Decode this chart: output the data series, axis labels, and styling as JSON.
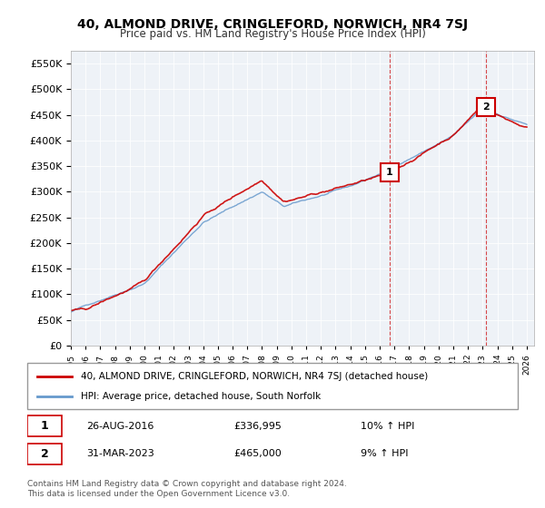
{
  "title": "40, ALMOND DRIVE, CRINGLEFORD, NORWICH, NR4 7SJ",
  "subtitle": "Price paid vs. HM Land Registry's House Price Index (HPI)",
  "ylim": [
    0,
    575000
  ],
  "yticks": [
    0,
    50000,
    100000,
    150000,
    200000,
    250000,
    300000,
    350000,
    400000,
    450000,
    500000,
    550000
  ],
  "xlim_start": 1995.0,
  "xlim_end": 2026.5,
  "purchase1_x": 2016.65,
  "purchase1_y": 336995,
  "purchase1_label": "1",
  "purchase2_x": 2023.25,
  "purchase2_y": 465000,
  "purchase2_label": "2",
  "red_line_color": "#cc0000",
  "blue_line_color": "#6699cc",
  "grid_color": "#cccccc",
  "bg_color": "#f0f0f0",
  "plot_bg_color": "#f0f0f0",
  "legend_line1": "40, ALMOND DRIVE, CRINGLEFORD, NORWICH, NR4 7SJ (detached house)",
  "legend_line2": "HPI: Average price, detached house, South Norfolk",
  "annotation1_date": "26-AUG-2016",
  "annotation1_price": "£336,995",
  "annotation1_hpi": "10% ↑ HPI",
  "annotation2_date": "31-MAR-2023",
  "annotation2_price": "£465,000",
  "annotation2_hpi": "9% ↑ HPI",
  "footer": "Contains HM Land Registry data © Crown copyright and database right 2024.\nThis data is licensed under the Open Government Licence v3.0."
}
